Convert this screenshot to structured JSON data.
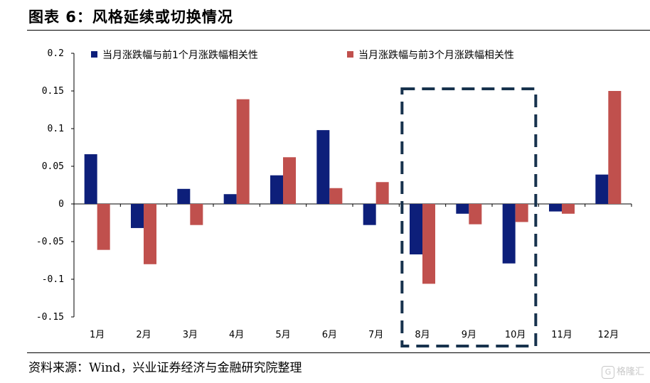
{
  "header": {
    "title": "图表 6：风格延续或切换情况"
  },
  "footer": {
    "source": "资料来源：Wind，兴业证券经济与金融研究院整理"
  },
  "watermark": {
    "text": "格隆汇",
    "logo_glyph": "G"
  },
  "colors": {
    "series1": "#0d1f7a",
    "series2": "#c0504d",
    "highlight_box": "#17324d"
  },
  "chart_data": {
    "type": "bar",
    "categories": [
      "1月",
      "2月",
      "3月",
      "4月",
      "5月",
      "6月",
      "7月",
      "8月",
      "9月",
      "10月",
      "11月",
      "12月"
    ],
    "series": [
      {
        "name": "当月涨跌幅与前1个月涨跌幅相关性",
        "values": [
          0.066,
          -0.032,
          0.02,
          0.013,
          0.038,
          0.098,
          -0.028,
          -0.067,
          -0.013,
          -0.079,
          -0.01,
          0.039
        ]
      },
      {
        "name": "当月涨跌幅与前3个月涨跌幅相关性",
        "values": [
          -0.061,
          -0.08,
          -0.028,
          0.139,
          0.062,
          0.021,
          0.029,
          -0.106,
          -0.027,
          -0.024,
          -0.013,
          0.15
        ]
      }
    ],
    "y_ticks": [
      "0.2",
      "0.15",
      "0.1",
      "0.05",
      "0",
      "-0.05",
      "-0.1",
      "-0.15"
    ],
    "ylim": [
      -0.15,
      0.2
    ],
    "legend_position": "top",
    "grid": false,
    "highlight": {
      "categories": [
        "8月",
        "9月",
        "10月"
      ],
      "style": "dashed box"
    }
  }
}
